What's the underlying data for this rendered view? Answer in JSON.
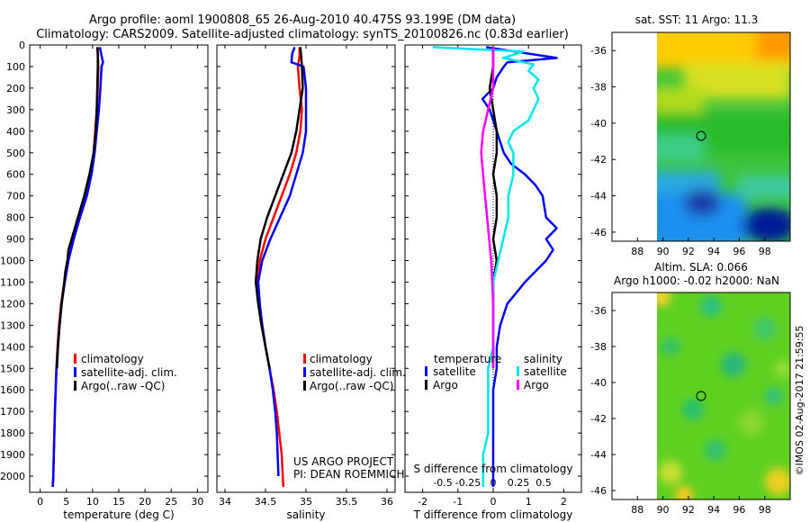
{
  "header": {
    "line1": "Argo profile: aoml 1900808_65 26-Aug-2010 40.475S 93.199E (DM data)",
    "line2": "Climatology: CARS2009. Satellite-adjusted climatology: synTS_20100826.nc (0.83d earlier)"
  },
  "colors": {
    "climatology": "#ff0000",
    "satellite": "#0000ff",
    "argo": "#000000",
    "sal_satellite": "#00e5ee",
    "sal_argo": "#ff00ff"
  },
  "depth_ticks": [
    "0",
    "100",
    "200",
    "300",
    "400",
    "500",
    "600",
    "700",
    "800",
    "900",
    "1000",
    "1100",
    "1200",
    "1300",
    "1400",
    "1500",
    "1600",
    "1700",
    "1800",
    "1900",
    "2000"
  ],
  "chart_data": [
    {
      "type": "line",
      "id": "temperature",
      "xlabel": "temperature (deg C)",
      "xlim": [
        -2,
        32
      ],
      "ylim": [
        2075,
        0
      ],
      "x_ticks": [
        "0",
        "5",
        "10",
        "15",
        "20",
        "25",
        "30"
      ],
      "x_tick_values": [
        0,
        5,
        10,
        15,
        20,
        25,
        30
      ],
      "legend": [
        "climatology",
        "satellite-adj. clim.",
        "Argo(..raw -QC)"
      ],
      "series": [
        {
          "name": "climatology",
          "color_key": "climatology",
          "depth": [
            10,
            50,
            100,
            200,
            300,
            400,
            500,
            600,
            700,
            800,
            900,
            1000,
            1100,
            1200,
            1300,
            1400,
            1500,
            1700,
            2000,
            2050
          ],
          "values": [
            11.0,
            11.0,
            11.1,
            11.0,
            10.8,
            10.5,
            10.2,
            9.6,
            8.6,
            7.4,
            6.2,
            5.2,
            4.6,
            4.0,
            3.6,
            3.3,
            3.1,
            2.8,
            2.5,
            2.4
          ]
        },
        {
          "name": "satellite-adj. clim.",
          "color_key": "satellite",
          "depth": [
            10,
            50,
            80,
            100,
            200,
            300,
            400,
            500,
            600,
            700,
            800,
            900,
            1000,
            1100,
            1200,
            1300,
            1400,
            1500,
            1700,
            2000,
            2050
          ],
          "values": [
            11.4,
            11.7,
            12.0,
            11.7,
            11.5,
            11.2,
            10.8,
            10.4,
            9.8,
            8.9,
            7.6,
            6.4,
            5.4,
            4.7,
            4.1,
            3.7,
            3.4,
            3.1,
            2.8,
            2.5,
            2.4
          ]
        },
        {
          "name": "Argo(..raw -QC)",
          "color_key": "argo",
          "depth": [
            10,
            50,
            100,
            200,
            300,
            400,
            500,
            600,
            700,
            800,
            900,
            950,
            1000,
            1050,
            1100,
            1200,
            1300,
            1400,
            1500
          ],
          "values": [
            10.9,
            11.0,
            11.0,
            10.9,
            10.8,
            10.6,
            10.2,
            9.4,
            8.4,
            7.2,
            6.0,
            5.4,
            5.2,
            4.8,
            4.6,
            4.1,
            3.7,
            3.4,
            3.2
          ]
        }
      ]
    },
    {
      "type": "line",
      "id": "salinity",
      "xlabel": "salinity",
      "xlim": [
        33.9,
        36.1
      ],
      "ylim": [
        2075,
        0
      ],
      "x_ticks": [
        "34",
        "34.5",
        "35",
        "35.5",
        "36"
      ],
      "x_tick_values": [
        34,
        34.5,
        35,
        35.5,
        36
      ],
      "legend": [
        "climatology",
        "satellite-adj. clim.",
        "Argo(..raw -QC)"
      ],
      "annotations": [
        "US ARGO PROJECT",
        "PI: DEAN ROEMMICH"
      ],
      "series": [
        {
          "name": "climatology",
          "color_key": "climatology",
          "depth": [
            10,
            50,
            100,
            200,
            300,
            400,
            500,
            600,
            700,
            800,
            900,
            1000,
            1100,
            1200,
            1300,
            1400,
            1500,
            1600,
            1700,
            1800,
            1900,
            2050
          ],
          "values": [
            34.92,
            34.92,
            34.9,
            34.92,
            34.95,
            34.93,
            34.88,
            34.8,
            34.7,
            34.6,
            34.5,
            34.43,
            34.4,
            34.42,
            34.46,
            34.5,
            34.55,
            34.6,
            34.64,
            34.67,
            34.7,
            34.72
          ]
        },
        {
          "name": "satellite-adj. clim.",
          "color_key": "satellite",
          "depth": [
            10,
            40,
            80,
            100,
            200,
            300,
            400,
            500,
            600,
            700,
            800,
            900,
            1000,
            1100,
            1200,
            1300,
            1400,
            1500,
            1600,
            1700,
            1800,
            1900,
            2000
          ],
          "values": [
            34.86,
            34.83,
            34.82,
            34.97,
            35.0,
            35.0,
            35.0,
            34.96,
            34.88,
            34.8,
            34.68,
            34.56,
            34.46,
            34.41,
            34.43,
            34.46,
            34.5,
            34.55,
            34.59,
            34.62,
            34.64,
            34.65,
            34.66
          ]
        },
        {
          "name": "Argo(..raw -QC)",
          "color_key": "argo",
          "depth": [
            10,
            50,
            100,
            200,
            300,
            400,
            500,
            600,
            700,
            800,
            900,
            1000,
            1100,
            1200,
            1300,
            1400,
            1500
          ],
          "values": [
            34.93,
            34.94,
            34.95,
            34.96,
            34.92,
            34.88,
            34.82,
            34.72,
            34.62,
            34.52,
            34.44,
            34.4,
            34.38,
            34.41,
            34.45,
            34.5,
            34.55
          ]
        }
      ]
    },
    {
      "type": "line",
      "id": "difference",
      "xlabel": "T difference from climatology",
      "xlabel_top": "S difference from climatology",
      "xlim": [
        -2.5,
        2.5
      ],
      "ylim": [
        2075,
        0
      ],
      "x_ticks": [
        "-2",
        "-1",
        "0",
        "1",
        "2"
      ],
      "x_tick_values": [
        -2,
        -1,
        0,
        1,
        2
      ],
      "s_ticks": [
        "-0.5",
        "-0.25",
        "0",
        "0.25",
        "0.5"
      ],
      "s_tick_values": [
        -0.5,
        -0.25,
        0,
        0.25,
        0.5
      ],
      "legend_titles": [
        "temperature",
        "salinity"
      ],
      "legend": [
        "satellite",
        "Argo",
        "satellite",
        "Argo"
      ],
      "series": [
        {
          "name": "satellite",
          "group": "temperature",
          "color_key": "satellite",
          "depth": [
            10,
            30,
            60,
            80,
            100,
            150,
            200,
            250,
            300,
            350,
            400,
            450,
            500,
            550,
            600,
            650,
            700,
            800,
            850,
            900,
            950,
            1000,
            1050,
            1100,
            1200,
            1300,
            1400,
            1500,
            1600,
            1700,
            1800,
            1900,
            2000,
            2050
          ],
          "values": [
            -0.2,
            0.6,
            1.8,
            0.4,
            0.3,
            0.1,
            0.0,
            -0.3,
            -0.1,
            0.0,
            0.1,
            0.2,
            0.3,
            0.5,
            0.9,
            1.2,
            1.4,
            1.5,
            1.8,
            1.5,
            1.7,
            1.5,
            1.2,
            0.9,
            0.4,
            0.2,
            0.1,
            0.1,
            0.0,
            0.0,
            0.0,
            0.0,
            0.0,
            0.0
          ]
        },
        {
          "name": "Argo",
          "group": "temperature",
          "color_key": "argo",
          "depth": [
            10,
            100,
            200,
            300,
            400,
            500,
            600,
            700,
            800,
            900,
            1000,
            1100,
            1200,
            1300,
            1400,
            1500
          ],
          "values": [
            0.0,
            0.0,
            -0.1,
            0.0,
            0.1,
            0.1,
            0.0,
            0.1,
            0.1,
            0.0,
            0.1,
            0.0,
            0.0,
            0.0,
            0.0,
            0.0
          ]
        },
        {
          "name": "satellite",
          "group": "salinity",
          "color_key": "sal_satellite",
          "depth": [
            10,
            30,
            60,
            90,
            120,
            160,
            200,
            250,
            300,
            350,
            400,
            450,
            500,
            600,
            700,
            800,
            900,
            1000,
            1100,
            1200,
            1300,
            1400,
            1500,
            1600,
            1700,
            1800,
            1900,
            2000,
            2050
          ],
          "values": [
            -0.6,
            0.3,
            0.1,
            0.4,
            0.35,
            0.45,
            0.4,
            0.45,
            0.4,
            0.35,
            0.2,
            0.15,
            0.2,
            0.2,
            0.15,
            0.15,
            0.1,
            0.05,
            0.0,
            0.0,
            0.0,
            0.0,
            -0.05,
            -0.05,
            -0.05,
            -0.05,
            -0.1,
            -0.1,
            -0.1
          ]
        },
        {
          "name": "Argo",
          "group": "salinity",
          "color_key": "sal_argo",
          "depth": [
            10,
            100,
            200,
            300,
            400,
            500,
            600,
            700,
            800,
            900,
            1000,
            1100,
            1200,
            1300,
            1400,
            1500
          ],
          "values": [
            0.0,
            0.0,
            0.0,
            -0.05,
            -0.1,
            -0.12,
            -0.1,
            -0.08,
            -0.06,
            -0.04,
            -0.02,
            -0.01,
            0.0,
            0.0,
            0.0,
            0.0
          ]
        }
      ]
    },
    {
      "type": "heatmap",
      "id": "sst_map",
      "title": "sat. SST: 11  Argo: 11.3",
      "x_ticks": [
        "88",
        "90",
        "92",
        "94",
        "96",
        "98"
      ],
      "y_ticks": [
        "-36",
        "-38",
        "-40",
        "-42",
        "-44",
        "-46"
      ],
      "xlim": [
        86,
        100
      ],
      "ylim": [
        -35,
        -46.5
      ],
      "data_xlim": [
        90,
        100
      ],
      "profile_location": [
        93.2,
        -40.5
      ]
    },
    {
      "type": "heatmap",
      "id": "sla_map",
      "title": "Altim. SLA: 0.066",
      "subtitle": "Argo h1000: -0.02 h2000: NaN",
      "x_ticks": [
        "88",
        "90",
        "92",
        "94",
        "96",
        "98"
      ],
      "y_ticks": [
        "-36",
        "-38",
        "-40",
        "-42",
        "-44",
        "-46"
      ],
      "xlim": [
        86,
        100
      ],
      "ylim": [
        -35,
        -46.5
      ],
      "data_xlim": [
        90,
        100
      ],
      "profile_location": [
        93.2,
        -40.5
      ]
    }
  ],
  "footer_stamp": "©IMOS 02-Aug-2017 21:59:55"
}
